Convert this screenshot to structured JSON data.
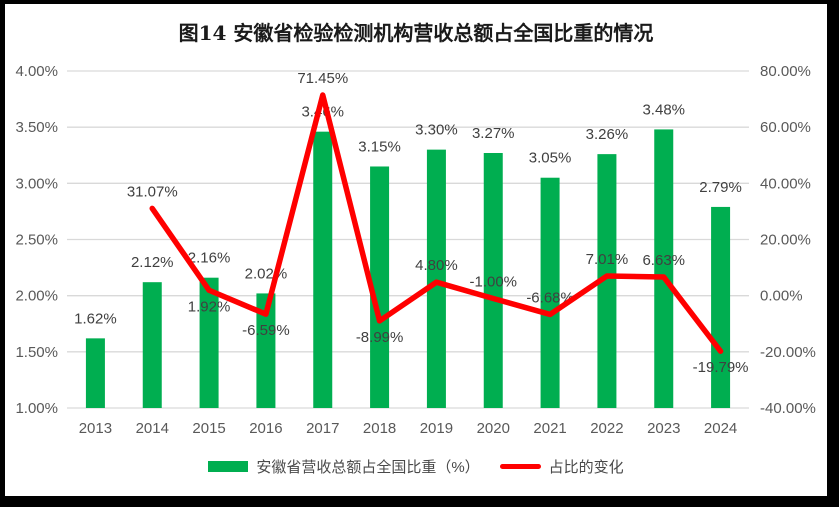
{
  "frame_color": "#000000",
  "background_color": "#ffffff",
  "chart_data": {
    "type": "bar+line",
    "title": "图14 安徽省检验检测机构营收总额占全国比重的情况",
    "categories": [
      "2013",
      "2014",
      "2015",
      "2016",
      "2017",
      "2018",
      "2019",
      "2020",
      "2021",
      "2022",
      "2023",
      "2024"
    ],
    "series": [
      {
        "name": "安徽省营收总额占全国比重（%）",
        "type": "bar",
        "axis": "left",
        "color": "#00AE50",
        "values": [
          1.62,
          2.12,
          2.16,
          2.02,
          3.46,
          3.15,
          3.3,
          3.27,
          3.05,
          3.26,
          3.48,
          2.79
        ],
        "labels": [
          "1.62%",
          "2.12%",
          "2.16%",
          "2.02%",
          "3.46%",
          "3.15%",
          "3.30%",
          "3.27%",
          "3.05%",
          "3.26%",
          "3.48%",
          "2.79%"
        ]
      },
      {
        "name": "占比的变化",
        "type": "line",
        "axis": "right",
        "color": "#FF0000",
        "values": [
          null,
          31.07,
          1.92,
          -6.59,
          71.45,
          -8.99,
          4.8,
          -1.0,
          -6.68,
          7.01,
          6.63,
          -19.79
        ],
        "labels": [
          null,
          "31.07%",
          "1.92%",
          "-6.59%",
          "71.45%",
          "-8.99%",
          "4.80%",
          "-1.00%",
          "-6.68%",
          "7.01%",
          "6.63%",
          "-19.79%"
        ],
        "label_positions": [
          null,
          "above",
          "below",
          "below",
          "above",
          "below",
          "above",
          "above",
          "above",
          "above",
          "above",
          "below"
        ]
      }
    ],
    "left_axis": {
      "min": 1.0,
      "max": 4.0,
      "tick_labels": [
        "4.00%",
        "3.50%",
        "3.00%",
        "2.50%",
        "2.00%",
        "1.50%",
        "1.00%"
      ]
    },
    "right_axis": {
      "min": -40,
      "max": 80,
      "tick_labels": [
        "80.00%",
        "60.00%",
        "40.00%",
        "20.00%",
        "0.00%",
        "-20.00%",
        "-40.00%"
      ]
    },
    "grid": true,
    "legend_position": "bottom",
    "styles": {
      "grid_color": "#D9D9D9",
      "tick_color": "#595959",
      "data_label_color": "#404040"
    }
  }
}
